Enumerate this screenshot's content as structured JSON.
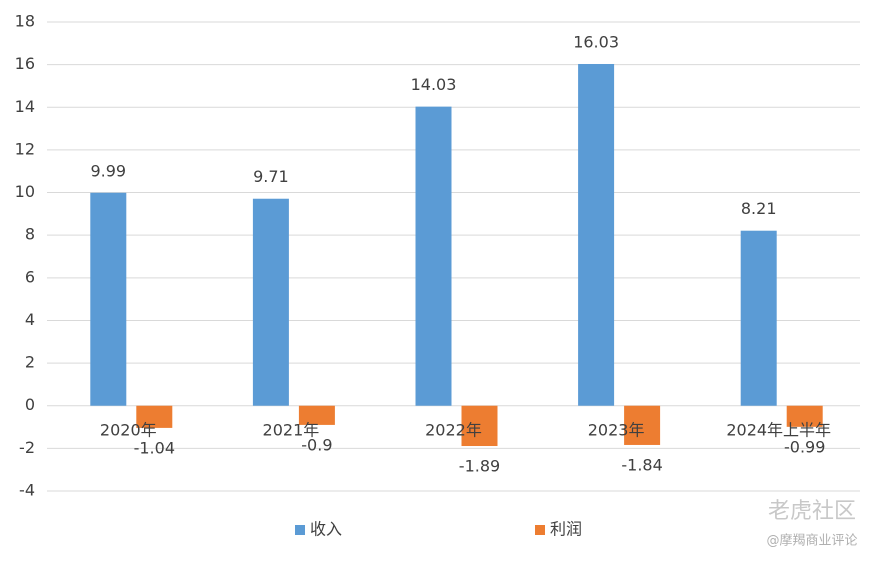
{
  "chart_data": {
    "type": "bar",
    "categories": [
      "2020年",
      "2021年",
      "2022年",
      "2023年",
      "2024年上半年"
    ],
    "series": [
      {
        "name": "收入",
        "color": "#5b9bd5",
        "values": [
          9.99,
          9.71,
          14.03,
          16.03,
          8.21
        ]
      },
      {
        "name": "利润",
        "color": "#ed7d31",
        "values": [
          -1.04,
          -0.9,
          -1.89,
          -1.84,
          -0.99
        ]
      }
    ],
    "ylim": [
      -4,
      18
    ],
    "yticks": [
      -4,
      -2,
      0,
      2,
      4,
      6,
      8,
      10,
      12,
      14,
      16,
      18
    ],
    "grid": true,
    "legend": "bottom"
  },
  "watermark": {
    "brand": "老虎社区",
    "author": "@摩羯商业评论"
  }
}
